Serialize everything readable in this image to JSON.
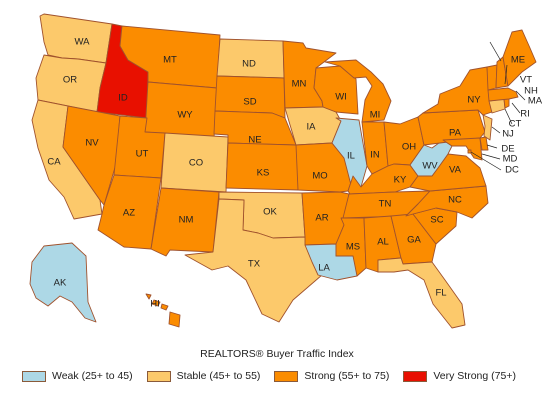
{
  "legend_title": "REALTORS® Buyer Traffic Index",
  "categories": [
    {
      "key": "weak",
      "label": "Weak (25+ to 45)",
      "color": "#add8e6"
    },
    {
      "key": "stable",
      "label": "Stable (45+ to 55)",
      "color": "#fcc96b"
    },
    {
      "key": "strong",
      "label": "Strong (55+ to 75)",
      "color": "#fb8c00"
    },
    {
      "key": "verystrong",
      "label": "Very Strong (75+)",
      "color": "#e81000"
    }
  ],
  "states": {
    "WA": "stable",
    "OR": "stable",
    "CA": "stable",
    "ID": "verystrong",
    "NV": "strong",
    "MT": "strong",
    "WY": "strong",
    "UT": "strong",
    "AZ": "strong",
    "CO": "stable",
    "NM": "strong",
    "ND": "stable",
    "SD": "strong",
    "NE": "strong",
    "KS": "strong",
    "OK": "stable",
    "TX": "stable",
    "MN": "strong",
    "IA": "stable",
    "MO": "strong",
    "AR": "strong",
    "LA": "weak",
    "WI": "strong",
    "IL": "weak",
    "MS": "strong",
    "MI": "strong",
    "IN": "strong",
    "KY": "strong",
    "TN": "strong",
    "AL": "strong",
    "OH": "strong",
    "WV": "weak",
    "GA": "strong",
    "FL": "stable",
    "SC": "strong",
    "NC": "strong",
    "VA": "strong",
    "PA": "strong",
    "NY": "strong",
    "ME": "strong",
    "VT": "strong",
    "NH": "strong",
    "MA": "strong",
    "RI": "strong",
    "CT": "stable",
    "NJ": "stable",
    "DE": "strong",
    "MD": "strong",
    "DC": "strong",
    "AK": "weak",
    "HI": "strong"
  },
  "labels": {
    "WA": "WA",
    "OR": "OR",
    "CA": "CA",
    "ID": "ID",
    "NV": "NV",
    "MT": "MT",
    "WY": "WY",
    "UT": "UT",
    "AZ": "AZ",
    "CO": "CO",
    "NM": "NM",
    "ND": "ND",
    "SD": "SD",
    "NE": "NE",
    "KS": "KS",
    "OK": "OK",
    "TX": "TX",
    "MN": "MN",
    "IA": "IA",
    "MO": "MO",
    "AR": "AR",
    "LA": "LA",
    "WI": "WI",
    "IL": "IL",
    "MS": "MS",
    "MI": "MI",
    "IN": "IN",
    "KY": "KY",
    "TN": "TN",
    "AL": "AL",
    "OH": "OH",
    "WV": "WV",
    "GA": "GA",
    "FL": "FL",
    "SC": "SC",
    "NC": "NC",
    "VA": "VA",
    "PA": "PA",
    "NY": "NY",
    "ME": "ME",
    "VT": "VT",
    "NH": "NH",
    "MA": "MA",
    "RI": "RI",
    "CT": "CT",
    "NJ": "NJ",
    "DE": "DE",
    "MD": "MD",
    "DC": "DC",
    "AK": "AK",
    "HI": "HI"
  }
}
